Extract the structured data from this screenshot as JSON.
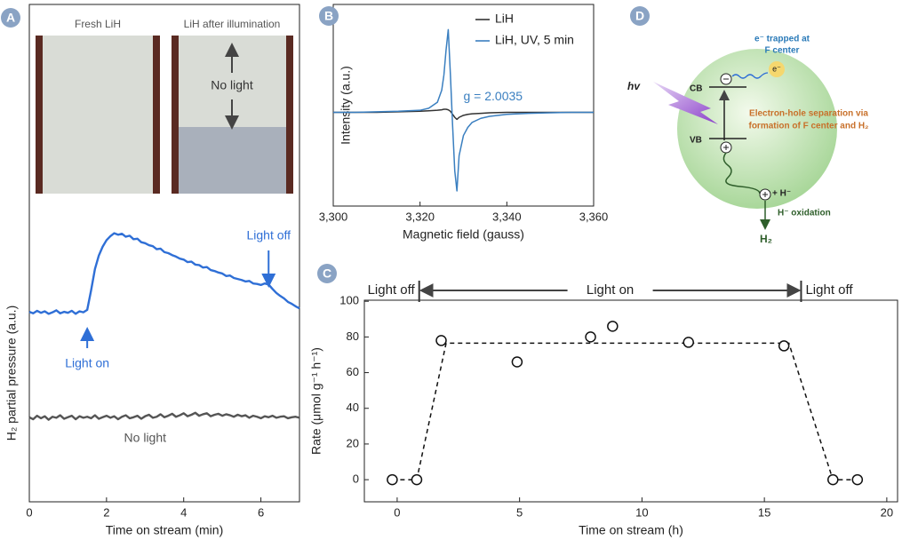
{
  "chart_data": [
    {
      "type": "line",
      "label": "A",
      "xlabel": "Time on stream (min)",
      "ylabel": "H₂ partial pressure (a.u.)",
      "x": [
        0,
        0.1,
        0.2,
        0.3,
        0.4,
        0.5,
        0.6,
        0.7,
        0.8,
        0.9,
        1.0,
        1.1,
        1.2,
        1.3,
        1.4,
        1.5,
        1.6,
        1.7,
        1.8,
        1.9,
        2.0,
        2.1,
        2.2,
        2.3,
        2.4,
        2.5,
        2.6,
        2.7,
        2.8,
        2.9,
        3.0,
        3.1,
        3.2,
        3.3,
        3.4,
        3.5,
        3.6,
        3.7,
        3.8,
        3.9,
        4.0,
        4.1,
        4.2,
        4.3,
        4.4,
        4.5,
        4.6,
        4.7,
        4.8,
        4.9,
        5.0,
        5.1,
        5.2,
        5.3,
        5.4,
        5.5,
        5.6,
        5.7,
        5.8,
        5.9,
        6.0,
        6.1,
        6.2,
        6.3,
        6.4,
        6.5,
        6.6,
        6.7,
        6.8,
        6.9,
        7.0
      ],
      "series": [
        {
          "color": "#2f6fd6",
          "values": [
            38.2,
            37.9,
            38.4,
            38.0,
            38.3,
            37.8,
            38.1,
            38.5,
            37.9,
            38.2,
            38.0,
            38.4,
            37.8,
            38.3,
            38.1,
            38.6,
            42.5,
            46.8,
            49.5,
            51.3,
            52.6,
            53.4,
            54.0,
            53.7,
            53.9,
            53.3,
            53.5,
            52.8,
            52.9,
            52.2,
            52.0,
            51.6,
            51.4,
            50.8,
            50.9,
            50.2,
            50.0,
            49.6,
            49.3,
            48.9,
            48.7,
            48.2,
            48.3,
            47.7,
            47.6,
            47.1,
            47.2,
            46.6,
            46.4,
            46.1,
            45.9,
            45.4,
            45.5,
            45.0,
            44.8,
            44.6,
            44.3,
            44.4,
            43.9,
            43.8,
            43.6,
            43.9,
            43.7,
            42.8,
            42.0,
            41.4,
            40.9,
            40.2,
            39.8,
            39.3,
            38.9
          ]
        },
        {
          "color": "#555555",
          "values": [
            17.0,
            16.6,
            17.3,
            16.8,
            17.2,
            16.5,
            17.1,
            16.9,
            17.4,
            16.7,
            17.0,
            17.3,
            16.6,
            17.2,
            16.9,
            17.1,
            16.8,
            17.4,
            16.7,
            17.0,
            17.3,
            16.9,
            17.2,
            16.6,
            17.1,
            17.4,
            16.8,
            17.0,
            17.3,
            16.7,
            17.2,
            17.5,
            16.9,
            17.1,
            17.6,
            17.0,
            17.3,
            17.7,
            17.1,
            17.4,
            17.8,
            17.2,
            17.5,
            17.9,
            17.3,
            17.6,
            17.8,
            17.2,
            17.5,
            17.7,
            17.3,
            17.6,
            17.4,
            17.1,
            17.5,
            17.2,
            17.4,
            16.9,
            17.3,
            17.1,
            16.8,
            17.2,
            17.0,
            17.3,
            16.9,
            17.1,
            17.2,
            16.8,
            17.0,
            17.1,
            16.9
          ]
        }
      ],
      "xlim": [
        0,
        7
      ],
      "xticks": [
        0,
        2,
        4,
        6
      ],
      "ylim": [
        0,
        100
      ],
      "inset": {
        "left_title": "Fresh LiH",
        "right_title": "LiH after illumination",
        "annotation": "No light"
      },
      "annotations": [
        {
          "text": "Light on",
          "x": 1.5
        },
        {
          "text": "Light off",
          "x": 6.2
        },
        {
          "text": "No light",
          "x": 3
        }
      ]
    },
    {
      "type": "line",
      "label": "B",
      "xlabel": "Magnetic field (gauss)",
      "ylabel": "Intensity (a.u.)",
      "x": [
        3300,
        3305,
        3310,
        3315,
        3320,
        3322,
        3324,
        3325,
        3325.5,
        3326,
        3326.5,
        3327,
        3327.5,
        3328,
        3328.5,
        3329,
        3330,
        3331,
        3332,
        3334,
        3336,
        3340,
        3345,
        3350,
        3355,
        3360
      ],
      "series": [
        {
          "name": "LiH",
          "color": "#333333",
          "values": [
            -7,
            -7,
            -7,
            -6.5,
            -6,
            -5.5,
            -5,
            -4.5,
            -4,
            -4,
            -4.5,
            -6,
            -9,
            -12,
            -14,
            -12,
            -10,
            -9,
            -8.5,
            -8,
            -7.5,
            -7,
            -7,
            -7,
            -7,
            -7
          ]
        },
        {
          "name": "LiH, UV, 5 min",
          "color": "#3a7fc0",
          "values": [
            -7,
            -7,
            -6.5,
            -6,
            -5,
            -3,
            3,
            15,
            30,
            55,
            75,
            30,
            -20,
            -65,
            -85,
            -50,
            -30,
            -22,
            -17,
            -13,
            -11,
            -9,
            -8,
            -7.5,
            -7,
            -7
          ]
        }
      ],
      "xlim": [
        3300,
        3360
      ],
      "xticks": [
        {
          "value": 3300,
          "label": "3,300"
        },
        {
          "value": 3320,
          "label": "3,320"
        },
        {
          "value": 3340,
          "label": "3,340"
        },
        {
          "value": 3360,
          "label": "3,360"
        }
      ],
      "ylim": [
        -100,
        100
      ],
      "legend": "upper right",
      "annotation": {
        "text": "g = 2.0035",
        "x": 3330,
        "y": 8
      }
    },
    {
      "type": "scatter",
      "label": "C",
      "xlabel": "Time on stream (h)",
      "ylabel": "Rate (μmol g⁻¹ h⁻¹)",
      "x": [
        -0.2,
        0.8,
        1.8,
        4.9,
        7.9,
        8.8,
        11.9,
        15.8,
        17.8,
        18.8
      ],
      "values": [
        0,
        0,
        78,
        66,
        80,
        86,
        77,
        75,
        0,
        0
      ],
      "fit": {
        "x": [
          -0.2,
          0.8,
          2.0,
          16.0,
          17.8,
          18.8
        ],
        "values": [
          0,
          0,
          76.5,
          76.5,
          0,
          0
        ]
      },
      "xlim": [
        -1.34,
        20.44
      ],
      "xticks": [
        0,
        5,
        10,
        15,
        20
      ],
      "ylim": [
        -12.4,
        100.6
      ],
      "yticks": [
        0,
        20,
        40,
        60,
        80,
        100
      ],
      "light_on_interval": [
        0.9,
        16.5
      ],
      "annotations": [
        {
          "text": "Light off"
        },
        {
          "text": "Light on"
        },
        {
          "text": "Light off"
        }
      ]
    }
  ],
  "diagram": {
    "label": "D",
    "hv": "hv",
    "cb": "CB",
    "vb": "VB",
    "electron": "e⁻",
    "trapped_1": "e⁻ trapped at",
    "trapped_2": "F center",
    "separation_1": "Electron-hole separation via",
    "separation_2": "formation of F center and H₂",
    "hydride": "+ H⁻",
    "oxidation": "H⁻ oxidation",
    "product": "H₂"
  }
}
